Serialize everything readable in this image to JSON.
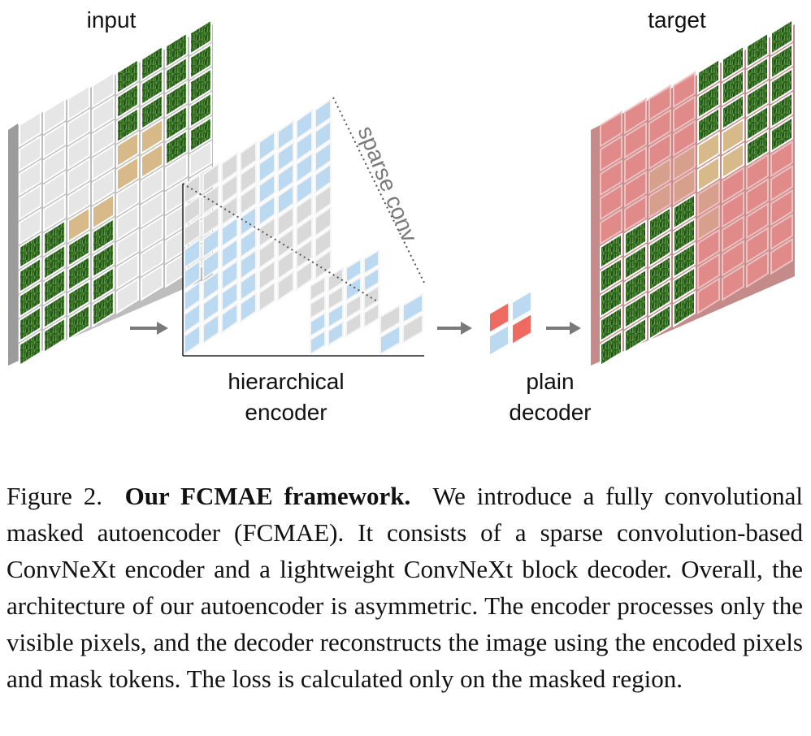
{
  "figure": {
    "labels": {
      "input": "input",
      "target": "target",
      "sparse_conv": "sparse conv",
      "encoder_line1": "hierarchical",
      "encoder_line2": "encoder",
      "decoder_line1": "plain",
      "decoder_line2": "decoder"
    }
  },
  "caption": {
    "prefix": "Figure 2.",
    "title": "Our FCMAE framework.",
    "body": "We introduce a fully convolutional masked autoencoder (FCMAE). It consists of a sparse convolution-based ConvNeXt encoder and a lightweight ConvNeXt block decoder. Overall, the architecture of our autoencoder is asymmetric. The encoder processes only the visible pixels, and the decoder reconstructs the image using the encoded pixels and mask tokens. The loss is calculated only on the masked region."
  },
  "colors": {
    "masked_patch": "#e6e6e6",
    "grass": "#2f6a22",
    "dog": "#d7b98a",
    "encoder_gray": "#d9d9d9",
    "encoder_blue": "#bcd9f2",
    "decoder_red": "#ef6b62",
    "target_tint": "#e38b8b",
    "arrow": "#7a7a7a"
  }
}
